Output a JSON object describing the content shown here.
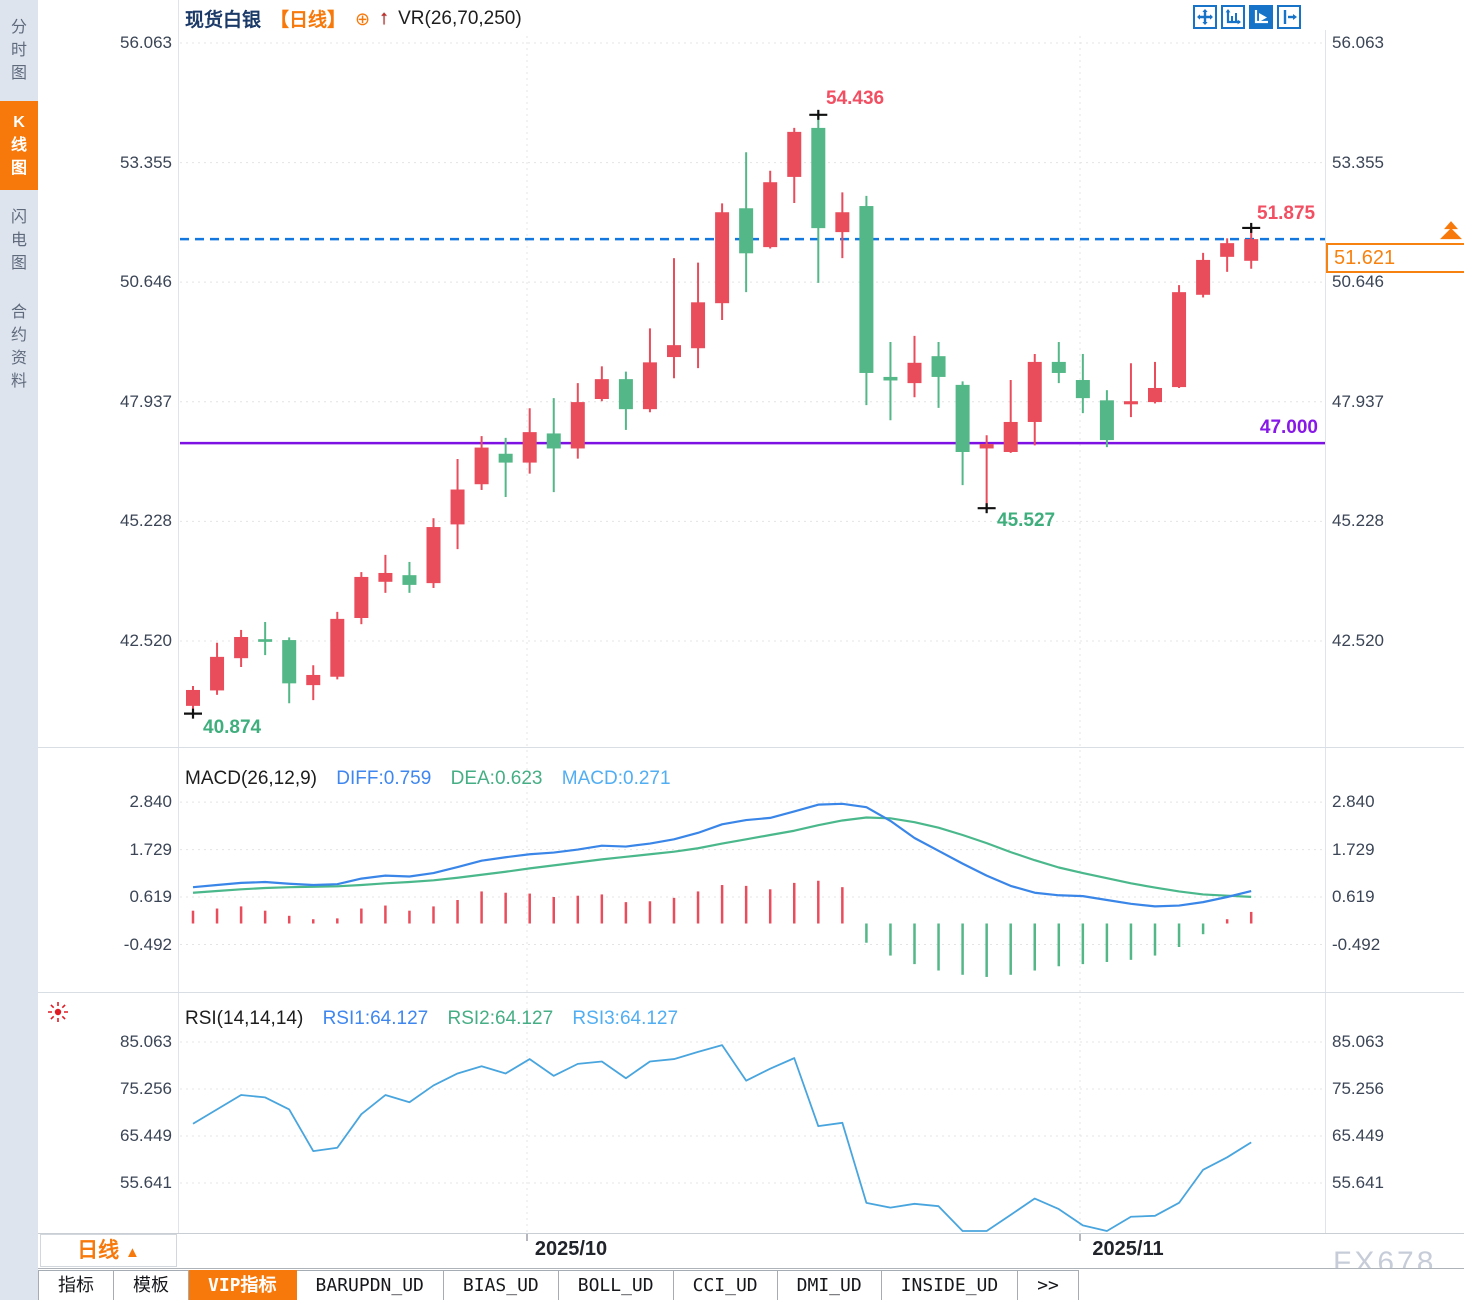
{
  "sidebar": {
    "items": [
      {
        "label": "分时图",
        "active": false
      },
      {
        "label": "K线图",
        "active": true
      },
      {
        "label": "闪电图",
        "active": false
      },
      {
        "label": "合约资料",
        "active": false
      }
    ]
  },
  "header": {
    "symbol": "现货白银",
    "period": "【日线】",
    "indicator": "VR(26,70,250)"
  },
  "icons": {
    "plus_circle": "⊕",
    "red_up_arrow": "↑",
    "triangle_up": "▲"
  },
  "toolbar": {
    "icons": [
      "pan-tool",
      "axis-scale",
      "auto-scale",
      "shift-right"
    ],
    "active_index": 2
  },
  "colors": {
    "up": "#e94d5c",
    "down": "#53b787",
    "macd_diff": "#3a86e8",
    "macd_dea": "#4bb88c",
    "rsi_line": "#49a5de",
    "accent_orange": "#f8790b",
    "support_purple": "#7d10e3",
    "dashed_blue": "#1377e0",
    "grid": "#e4e4e4",
    "border": "#dfe3ea"
  },
  "chart_data": [
    {
      "type": "candlestick",
      "title": "现货白银 日线",
      "y_ticks": [
        "56.063",
        "53.355",
        "50.646",
        "47.937",
        "45.228",
        "42.520"
      ],
      "x_labels": [
        "2025/10",
        "2025/11"
      ],
      "support_line": 47.0,
      "current_price": 51.621,
      "ohlc": [
        [
          41.05,
          41.5,
          40.874,
          41.41
        ],
        [
          41.4,
          42.48,
          41.3,
          42.16
        ],
        [
          42.13,
          42.77,
          41.93,
          42.61
        ],
        [
          42.56,
          42.95,
          42.2,
          42.5
        ],
        [
          42.54,
          42.6,
          41.11,
          41.56
        ],
        [
          41.52,
          41.97,
          41.18,
          41.75
        ],
        [
          41.71,
          43.18,
          41.65,
          43.02
        ],
        [
          43.04,
          44.08,
          42.9,
          43.97
        ],
        [
          43.86,
          44.47,
          43.61,
          44.06
        ],
        [
          44.01,
          44.31,
          43.61,
          43.79
        ],
        [
          43.83,
          45.3,
          43.72,
          45.1
        ],
        [
          45.16,
          46.64,
          44.6,
          45.95
        ],
        [
          46.07,
          47.16,
          45.94,
          46.9
        ],
        [
          46.76,
          47.12,
          45.78,
          46.56
        ],
        [
          46.56,
          47.79,
          46.31,
          47.25
        ],
        [
          47.22,
          48.02,
          45.89,
          46.88
        ],
        [
          46.88,
          48.36,
          46.65,
          47.93
        ],
        [
          48.0,
          48.74,
          47.95,
          48.45
        ],
        [
          48.45,
          48.62,
          47.3,
          47.77
        ],
        [
          47.77,
          49.6,
          47.7,
          48.83
        ],
        [
          48.95,
          51.19,
          48.47,
          49.22
        ],
        [
          49.15,
          51.09,
          48.7,
          50.19
        ],
        [
          50.17,
          52.43,
          49.79,
          52.23
        ],
        [
          52.32,
          53.59,
          50.42,
          51.3
        ],
        [
          51.44,
          53.17,
          51.41,
          52.91
        ],
        [
          53.03,
          54.14,
          52.44,
          54.05
        ],
        [
          54.14,
          54.436,
          50.63,
          51.87
        ],
        [
          51.78,
          52.68,
          51.19,
          52.23
        ],
        [
          52.37,
          52.6,
          47.86,
          48.59
        ],
        [
          48.5,
          49.29,
          47.52,
          48.42
        ],
        [
          48.36,
          49.43,
          48.04,
          48.82
        ],
        [
          48.97,
          49.29,
          47.8,
          48.5
        ],
        [
          48.32,
          48.4,
          46.05,
          46.8
        ],
        [
          46.88,
          47.18,
          45.527,
          46.98
        ],
        [
          46.8,
          48.43,
          46.78,
          47.48
        ],
        [
          47.48,
          49.02,
          46.95,
          48.84
        ],
        [
          48.84,
          49.29,
          48.36,
          48.59
        ],
        [
          48.43,
          49.02,
          47.68,
          48.02
        ],
        [
          47.97,
          48.2,
          46.91,
          47.07
        ],
        [
          47.88,
          48.81,
          47.59,
          47.95
        ],
        [
          47.93,
          48.84,
          47.9,
          48.25
        ],
        [
          48.27,
          50.58,
          48.25,
          50.42
        ],
        [
          50.36,
          51.31,
          50.3,
          51.15
        ],
        [
          51.22,
          51.64,
          50.88,
          51.53
        ],
        [
          51.13,
          51.875,
          50.95,
          51.621
        ]
      ],
      "markers": [
        {
          "candle": 1,
          "at": "low"
        },
        {
          "candle": 27,
          "at": "high"
        },
        {
          "candle": 34,
          "at": "low"
        },
        {
          "candle": 45,
          "at": "high"
        }
      ],
      "annotations": {
        "start_low": "40.874",
        "peak_high": "54.436",
        "dip_low": "45.527",
        "last_high": "51.875",
        "support": "47.000",
        "current": "51.621"
      }
    },
    {
      "type": "macd",
      "labels": {
        "name": "MACD(26,12,9)",
        "diff": "DIFF:0.759",
        "dea": "DEA:0.623",
        "macd": "MACD:0.271"
      },
      "y_ticks": [
        "2.840",
        "1.729",
        "0.619",
        "-0.492"
      ],
      "diff": [
        0.85,
        0.9,
        0.95,
        0.97,
        0.93,
        0.9,
        0.92,
        1.05,
        1.12,
        1.1,
        1.18,
        1.32,
        1.47,
        1.55,
        1.62,
        1.66,
        1.73,
        1.82,
        1.8,
        1.87,
        1.97,
        2.12,
        2.32,
        2.42,
        2.47,
        2.62,
        2.78,
        2.8,
        2.72,
        2.4,
        2.0,
        1.7,
        1.4,
        1.12,
        0.88,
        0.72,
        0.66,
        0.64,
        0.55,
        0.46,
        0.4,
        0.42,
        0.5,
        0.62,
        0.759
      ],
      "dea": [
        0.72,
        0.76,
        0.8,
        0.83,
        0.85,
        0.86,
        0.87,
        0.9,
        0.94,
        0.97,
        1.01,
        1.07,
        1.14,
        1.21,
        1.29,
        1.36,
        1.43,
        1.5,
        1.56,
        1.62,
        1.68,
        1.76,
        1.87,
        1.97,
        2.07,
        2.17,
        2.3,
        2.41,
        2.48,
        2.46,
        2.37,
        2.24,
        2.07,
        1.88,
        1.67,
        1.48,
        1.31,
        1.18,
        1.06,
        0.94,
        0.84,
        0.75,
        0.68,
        0.65,
        0.623
      ],
      "hist": [
        0.3,
        0.35,
        0.4,
        0.3,
        0.18,
        0.1,
        0.12,
        0.35,
        0.42,
        0.3,
        0.4,
        0.55,
        0.75,
        0.72,
        0.7,
        0.62,
        0.65,
        0.68,
        0.5,
        0.52,
        0.6,
        0.75,
        0.9,
        0.88,
        0.8,
        0.95,
        1.0,
        0.85,
        -0.45,
        -0.75,
        -0.95,
        -1.1,
        -1.2,
        -1.25,
        -1.2,
        -1.1,
        -1.0,
        -0.95,
        -0.9,
        -0.85,
        -0.75,
        -0.55,
        -0.25,
        0.1,
        0.271
      ]
    },
    {
      "type": "line",
      "labels": {
        "name": "RSI(14,14,14)",
        "rsi1": "RSI1:64.127",
        "rsi2": "RSI2:64.127",
        "rsi3": "RSI3:64.127"
      },
      "y_ticks": [
        "85.063",
        "75.256",
        "65.449",
        "55.641"
      ],
      "values": [
        68,
        71,
        74,
        73.5,
        71,
        62.3,
        63,
        70,
        74,
        72.5,
        76,
        78.5,
        80,
        78.5,
        81.5,
        78,
        80.5,
        81,
        77.5,
        81,
        81.5,
        83,
        84.4,
        77,
        79.5,
        81.7,
        67.5,
        68.2,
        51.5,
        50.5,
        51.3,
        50.8,
        44.8,
        44.9,
        49,
        52.4,
        50.2,
        46.8,
        44,
        48.6,
        48.8,
        51.5,
        58.4,
        61,
        64.127
      ]
    }
  ],
  "bottom": {
    "period_label": "日线",
    "tabs": [
      "指标",
      "模板",
      "VIP指标",
      "BARUPDN_UD",
      "BIAS_UD",
      "BOLL_UD",
      "CCI_UD",
      "DMI_UD",
      "INSIDE_UD",
      ">>"
    ],
    "active_tab_index": 2,
    "watermark": "FX678"
  }
}
